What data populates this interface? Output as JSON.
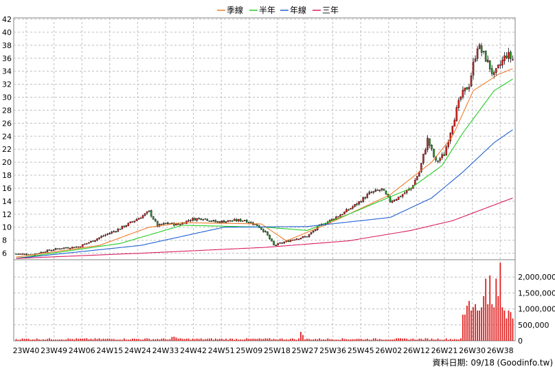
{
  "chart_data": [
    {
      "type": "candlestick",
      "title": "",
      "legend": [
        {
          "label": "季線",
          "color": "#f07a2a"
        },
        {
          "label": "半年",
          "color": "#22cc22"
        },
        {
          "label": "年線",
          "color": "#1f5fd0"
        },
        {
          "label": "三年",
          "color": "#d81b60"
        }
      ],
      "legend_placement": "top-center",
      "ylim": [
        5,
        42
      ],
      "yticks": [
        6,
        8,
        10,
        12,
        14,
        16,
        18,
        20,
        22,
        24,
        26,
        28,
        30,
        32,
        34,
        36,
        38,
        40,
        42
      ],
      "xticks": [
        "23W40",
        "23W49",
        "24W06",
        "24W15",
        "24W24",
        "24W33",
        "24W42",
        "24W51",
        "25W09",
        "25W18",
        "25W27",
        "25W36",
        "25W45",
        "26W02",
        "26W12",
        "26W21",
        "26W30",
        "26W38"
      ],
      "grid": true,
      "close_anchors": [
        [
          0,
          5.9
        ],
        [
          8,
          5.8
        ],
        [
          15,
          6.4
        ],
        [
          22,
          6.8
        ],
        [
          30,
          7.0
        ],
        [
          36,
          7.8
        ],
        [
          42,
          8.7
        ],
        [
          48,
          9.5
        ],
        [
          54,
          10.5
        ],
        [
          60,
          11.6
        ],
        [
          64,
          12.4
        ],
        [
          68,
          10.2
        ],
        [
          72,
          10.6
        ],
        [
          78,
          10.4
        ],
        [
          84,
          11.2
        ],
        [
          90,
          11.4
        ],
        [
          96,
          10.8
        ],
        [
          104,
          11.0
        ],
        [
          110,
          11.1
        ],
        [
          116,
          10.3
        ],
        [
          120,
          9.2
        ],
        [
          124,
          7.2
        ],
        [
          128,
          7.6
        ],
        [
          134,
          8.2
        ],
        [
          140,
          8.6
        ],
        [
          146,
          10.2
        ],
        [
          152,
          11.2
        ],
        [
          158,
          12.3
        ],
        [
          164,
          13.6
        ],
        [
          170,
          15.2
        ],
        [
          176,
          15.8
        ],
        [
          180,
          14.0
        ],
        [
          184,
          14.6
        ],
        [
          190,
          16.0
        ],
        [
          194,
          18.5
        ],
        [
          198,
          23.5
        ],
        [
          202,
          20.0
        ],
        [
          206,
          21.2
        ],
        [
          210,
          26.0
        ],
        [
          214,
          30.0
        ],
        [
          218,
          32.0
        ],
        [
          222,
          38.0
        ],
        [
          226,
          36.0
        ],
        [
          230,
          33.2
        ],
        [
          233,
          35.0
        ],
        [
          236,
          36.6
        ],
        [
          239,
          35.8
        ]
      ],
      "ma_quarter": [
        [
          0,
          5.4
        ],
        [
          40,
          7.2
        ],
        [
          64,
          10.0
        ],
        [
          80,
          10.7
        ],
        [
          118,
          10.5
        ],
        [
          130,
          7.9
        ],
        [
          150,
          10.5
        ],
        [
          180,
          15.0
        ],
        [
          200,
          20.0
        ],
        [
          210,
          24.0
        ],
        [
          220,
          31.0
        ],
        [
          232,
          33.5
        ],
        [
          239,
          34.4
        ]
      ],
      "ma_half": [
        [
          0,
          5.2
        ],
        [
          50,
          7.5
        ],
        [
          80,
          10.3
        ],
        [
          120,
          10.0
        ],
        [
          140,
          9.5
        ],
        [
          160,
          12.0
        ],
        [
          190,
          16.0
        ],
        [
          205,
          19.5
        ],
        [
          215,
          24.5
        ],
        [
          230,
          31.0
        ],
        [
          239,
          32.8
        ]
      ],
      "ma_year": [
        [
          0,
          5.2
        ],
        [
          60,
          7.2
        ],
        [
          100,
          10.0
        ],
        [
          140,
          10.1
        ],
        [
          180,
          11.5
        ],
        [
          200,
          14.5
        ],
        [
          215,
          18.5
        ],
        [
          230,
          23.0
        ],
        [
          239,
          25.0
        ]
      ],
      "ma_three": [
        [
          0,
          5.2
        ],
        [
          60,
          6.0
        ],
        [
          120,
          6.9
        ],
        [
          160,
          7.9
        ],
        [
          190,
          9.5
        ],
        [
          210,
          11.0
        ],
        [
          239,
          14.5
        ]
      ]
    },
    {
      "type": "bar",
      "ylim": [
        0,
        2500000
      ],
      "yticks": [
        "0",
        "500,000",
        "1,000,000",
        "1,500,000",
        "2,000,000"
      ],
      "spikes": [
        [
          137,
          280000
        ],
        [
          138,
          180000
        ],
        [
          75,
          120000
        ],
        [
          76,
          130000
        ],
        [
          77,
          100000
        ]
      ],
      "volumes_recent": [
        820000,
        820000,
        1100000,
        1250000,
        950000,
        1050000,
        1150000,
        950000,
        950000,
        1050000,
        1400000,
        1950000,
        1150000,
        2050000,
        1150000,
        1050000,
        1950000,
        1400000,
        2450000,
        1050000,
        950000,
        700000,
        950000,
        900000,
        700000
      ]
    }
  ],
  "footer": {
    "label": "資料日期: 09/18",
    "source": "(Goodinfo.tw)"
  }
}
